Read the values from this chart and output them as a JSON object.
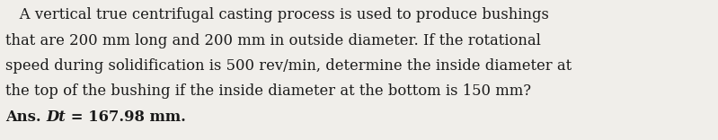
{
  "line1": "   A vertical true centrifugal casting process is used to produce bushings",
  "line2": "that are 200 mm long and 200 mm in outside diameter. If the rotational",
  "line3": "speed during solidification is 500 rev/min, determine the inside diameter at",
  "line4": "the top of the bushing if the inside diameter at the bottom is 150 mm?",
  "ans_prefix": "Ans. ",
  "ans_italic": "Dt",
  "ans_suffix": " = 167.98 mm.",
  "background_color": "#f0eeea",
  "text_color": "#1a1a1a",
  "fontsize": 11.8,
  "font_family": "DejaVu Serif"
}
